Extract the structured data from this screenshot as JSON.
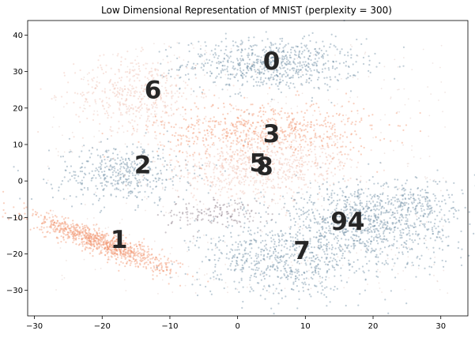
{
  "chart_data": {
    "type": "scatter",
    "title": "Low Dimensional Representation of MNIST (perplexity = 300)",
    "xlabel": "",
    "ylabel": "",
    "xlim": [
      -31,
      34
    ],
    "ylim": [
      -37,
      44
    ],
    "x_ticks": [
      -30,
      -20,
      -10,
      0,
      10,
      20,
      30
    ],
    "y_ticks": [
      -30,
      -20,
      -10,
      0,
      10,
      20,
      30,
      40
    ],
    "grid": false,
    "colors": {
      "steel_blue": "#6f8fa3",
      "orange": "#f2956e",
      "light_pink": "#f0c4b6",
      "faint": "#d6b8b0"
    },
    "clusters": [
      {
        "label": "0",
        "label_x": 5,
        "label_y": 33,
        "center": [
          5,
          32
        ],
        "spread": [
          6.5,
          3.5
        ],
        "count": 700,
        "color": "#6f8fa3"
      },
      {
        "label": "6",
        "label_x": -12.5,
        "label_y": 25,
        "center": [
          -15,
          24
        ],
        "spread": [
          4.5,
          5
        ],
        "count": 450,
        "color": "#f0c4b6"
      },
      {
        "label": "3",
        "label_x": 5,
        "label_y": 13,
        "center": [
          4,
          14
        ],
        "spread": [
          8,
          4
        ],
        "count": 650,
        "color": "#f2956e"
      },
      {
        "label": "2",
        "label_x": -14,
        "label_y": 4.5,
        "center": [
          -17,
          2
        ],
        "spread": [
          5,
          4
        ],
        "count": 450,
        "color": "#6f8fa3"
      },
      {
        "label": "5",
        "label_x": 3,
        "label_y": 5,
        "center": [
          1,
          3
        ],
        "spread": [
          7,
          4
        ],
        "count": 400,
        "color": "#f0c4b6"
      },
      {
        "label": "8",
        "label_x": 4,
        "label_y": 4,
        "center": [
          6,
          5
        ],
        "spread": [
          6,
          4
        ],
        "count": 350,
        "color": "#f0c4b6"
      },
      {
        "label": "1",
        "label_x": -17.5,
        "label_y": -16,
        "center": [
          -20,
          -17
        ],
        "spread": [
          3.2,
          3.2
        ],
        "count": 900,
        "color": "#f2956e",
        "elongated": true
      },
      {
        "label": "9",
        "label_x": 15,
        "label_y": -11,
        "center": [
          18,
          -13
        ],
        "spread": [
          7,
          6
        ],
        "count": 600,
        "color": "#6f8fa3"
      },
      {
        "label": "4",
        "label_x": 17.5,
        "label_y": -11,
        "center": [
          21,
          -9
        ],
        "spread": [
          6,
          5
        ],
        "count": 450,
        "color": "#6f8fa3"
      },
      {
        "label": "7",
        "label_x": 9.5,
        "label_y": -19,
        "center": [
          6,
          -22
        ],
        "spread": [
          6,
          5
        ],
        "count": 600,
        "color": "#6f8fa3"
      },
      {
        "label": "",
        "label_x": null,
        "label_y": null,
        "center": [
          -3,
          -9
        ],
        "spread": [
          4,
          2
        ],
        "count": 150,
        "color": "#8f7f8a"
      },
      {
        "label": "",
        "label_x": null,
        "label_y": null,
        "center": [
          27,
          -6
        ],
        "spread": [
          1.5,
          2
        ],
        "count": 60,
        "color": "#6f8fa3"
      }
    ]
  }
}
